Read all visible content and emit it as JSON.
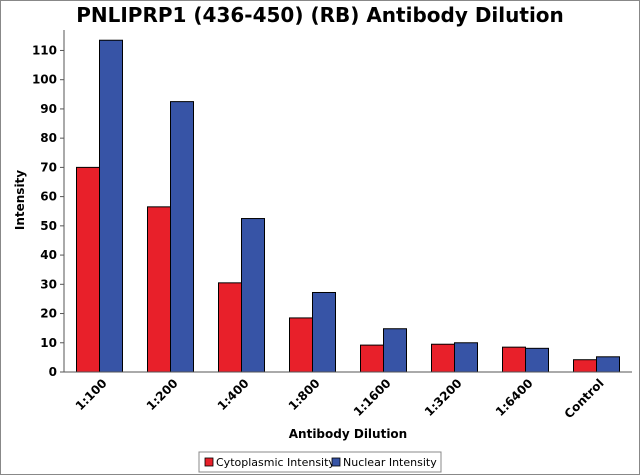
{
  "chart_data": {
    "type": "bar",
    "title": "PNLIPRP1 (436-450) (RB) Antibody Dilution",
    "xlabel": "Antibody Dilution",
    "ylabel": "Intensity",
    "categories": [
      "1:100",
      "1:200",
      "1:400",
      "1:800",
      "1:1600",
      "1:3200",
      "1:6400",
      "Control"
    ],
    "ylim": [
      0,
      117
    ],
    "yticks": [
      0,
      10,
      20,
      30,
      40,
      50,
      60,
      70,
      80,
      90,
      100,
      110
    ],
    "grid": false,
    "legend_position": "bottom",
    "series": [
      {
        "name": "Cytoplasmic Intensity",
        "color": "#e8202a",
        "values": [
          70,
          56.5,
          30.5,
          18.5,
          9.2,
          9.5,
          8.5,
          4.2
        ]
      },
      {
        "name": "Nuclear Intensity",
        "color": "#3754a6",
        "values": [
          113.5,
          92.5,
          52.5,
          27.2,
          14.8,
          10,
          8.1,
          5.2
        ]
      }
    ]
  }
}
